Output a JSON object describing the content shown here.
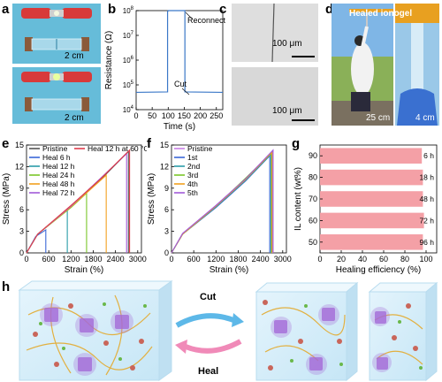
{
  "panels": {
    "a": {
      "label": "a",
      "scale_top": "2 cm",
      "scale_bottom": "2 cm"
    },
    "b": {
      "label": "b"
    },
    "c": {
      "label": "c",
      "scale_top": "100 μm",
      "scale_bottom": "100 μm"
    },
    "d": {
      "label": "d",
      "caption": "Healed ionogel",
      "scale_left": "25 cm",
      "scale_right": "4 cm"
    },
    "e": {
      "label": "e"
    },
    "f": {
      "label": "f"
    },
    "g": {
      "label": "g"
    },
    "h": {
      "label": "h",
      "cut_label": "Cut",
      "heal_label": "Heal"
    }
  },
  "colors": {
    "blue": "#3b78c8",
    "pink": "#f4a0a6",
    "lightblue": "#d8ecf8",
    "purple": "#a46ad8"
  },
  "chart_data": [
    {
      "panel": "b",
      "type": "line",
      "title": "",
      "xlabel": "Time (s)",
      "ylabel": "Resistance (Ω)",
      "xlim": [
        0,
        270
      ],
      "ylim_log10": [
        4,
        8
      ],
      "yscale": "log",
      "xticks": [
        0,
        50,
        100,
        150,
        200,
        250
      ],
      "yticks": [
        "10^4",
        "10^5",
        "10^6",
        "10^7",
        "10^8"
      ],
      "annotations": [
        "Cut",
        "Reconnect"
      ],
      "series": [
        {
          "x": [
            0,
            98,
            98,
            100,
            150,
            152,
            152,
            270
          ],
          "y": [
            50000,
            52000,
            90000000,
            100000000,
            100000000,
            100000000,
            52000,
            50000
          ]
        }
      ]
    },
    {
      "panel": "e",
      "type": "line",
      "xlabel": "Strain (%)",
      "ylabel": "Stress (MPa)",
      "xlim": [
        0,
        3100
      ],
      "ylim": [
        0,
        15
      ],
      "xticks": [
        0,
        600,
        1200,
        1800,
        2400,
        3000
      ],
      "yticks": [
        0,
        3,
        6,
        9,
        12,
        15
      ],
      "series": [
        {
          "name": "Pristine",
          "color": "#555555",
          "x": [
            0,
            300,
            1200,
            2000,
            2750,
            2750
          ],
          "y": [
            0,
            2.6,
            6.5,
            10.2,
            14.1,
            0
          ]
        },
        {
          "name": "Heal 6 h",
          "color": "#3b68d8",
          "x": [
            0,
            250,
            520,
            520
          ],
          "y": [
            0,
            2.3,
            3.2,
            0
          ]
        },
        {
          "name": "Heal 12 h",
          "color": "#2a9da8",
          "x": [
            0,
            300,
            1100,
            1100
          ],
          "y": [
            0,
            2.6,
            6.0,
            0
          ]
        },
        {
          "name": "Heal 24 h",
          "color": "#7bc62a",
          "x": [
            0,
            300,
            1200,
            1620,
            1620
          ],
          "y": [
            0,
            2.6,
            6.3,
            8.3,
            0
          ]
        },
        {
          "name": "Heal 48 h",
          "color": "#f2a020",
          "x": [
            0,
            300,
            1200,
            2150,
            2150
          ],
          "y": [
            0,
            2.6,
            6.4,
            10.8,
            0
          ]
        },
        {
          "name": "Heal 72 h",
          "color": "#a25ad8",
          "x": [
            0,
            300,
            1200,
            2700,
            2700
          ],
          "y": [
            0,
            2.6,
            6.5,
            13.8,
            0
          ]
        },
        {
          "name": "Heal 12 h at 60 °C",
          "color": "#e03c4c",
          "x": [
            0,
            300,
            1200,
            2000,
            2780,
            2780
          ],
          "y": [
            0,
            2.6,
            6.6,
            10.3,
            14.3,
            0
          ]
        }
      ]
    },
    {
      "panel": "f",
      "type": "line",
      "xlabel": "Strain (%)",
      "ylabel": "Stress (MPa)",
      "xlim": [
        0,
        3100
      ],
      "ylim": [
        0,
        15
      ],
      "xticks": [
        0,
        600,
        1200,
        1800,
        2400,
        3000
      ],
      "yticks": [
        0,
        3,
        6,
        9,
        12,
        15
      ],
      "series": [
        {
          "name": "Pristine",
          "color": "#c87ee6",
          "x": [
            0,
            300,
            1200,
            2000,
            2720,
            2720
          ],
          "y": [
            0,
            2.7,
            6.6,
            10.3,
            14.1,
            0
          ]
        },
        {
          "name": "1st",
          "color": "#3b68d8",
          "x": [
            0,
            300,
            1200,
            2000,
            2650,
            2650
          ],
          "y": [
            0,
            2.6,
            6.3,
            10.0,
            13.5,
            0
          ]
        },
        {
          "name": "2nd",
          "color": "#2a9da8",
          "x": [
            0,
            300,
            1200,
            2000,
            2680,
            2680
          ],
          "y": [
            0,
            2.6,
            6.4,
            10.1,
            13.7,
            0
          ]
        },
        {
          "name": "3rd",
          "color": "#7bc62a",
          "x": [
            0,
            300,
            1200,
            2000,
            2700,
            2700
          ],
          "y": [
            0,
            2.6,
            6.5,
            10.4,
            13.9,
            0
          ]
        },
        {
          "name": "4th",
          "color": "#f2a020",
          "x": [
            0,
            300,
            1200,
            2000,
            2710,
            2710
          ],
          "y": [
            0,
            2.6,
            6.5,
            10.2,
            14.0,
            0
          ]
        },
        {
          "name": "5th",
          "color": "#a25ad8",
          "x": [
            0,
            300,
            1200,
            2000,
            2740,
            2740
          ],
          "y": [
            0,
            2.7,
            6.6,
            10.3,
            14.3,
            0
          ]
        }
      ]
    },
    {
      "panel": "g",
      "type": "bar",
      "orientation": "horizontal",
      "xlabel": "Healing efficiency (%)",
      "ylabel": "IL content (wt%)",
      "xlim": [
        0,
        110
      ],
      "xticks": [
        0,
        20,
        40,
        60,
        80,
        100
      ],
      "categories": [
        "90",
        "80",
        "70",
        "60",
        "50"
      ],
      "values": [
        96,
        97,
        97,
        98,
        97
      ],
      "bar_labels": [
        "6 h",
        "18 h",
        "48 h",
        "72 h",
        "96 h"
      ]
    }
  ]
}
